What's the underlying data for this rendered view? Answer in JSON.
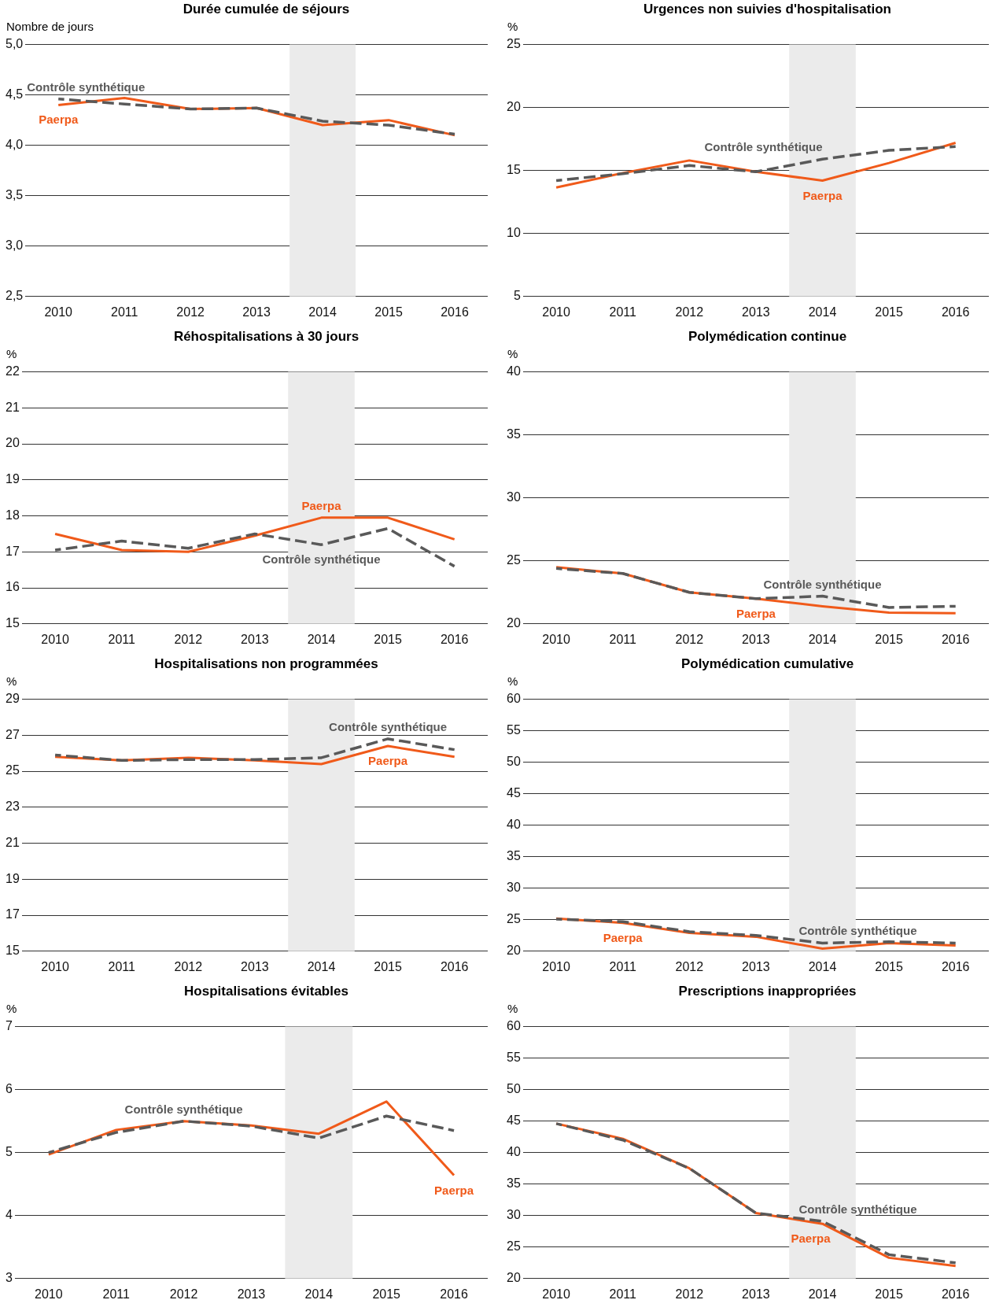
{
  "chart_data": [
    {
      "type": "line",
      "title": "Durée cumulée de séjours",
      "ylabel": "Nombre de jours",
      "x": [
        2010,
        2011,
        2012,
        2013,
        2014,
        2015,
        2016
      ],
      "xlim": [
        2009.5,
        2016.5
      ],
      "xticks": [
        2010,
        2011,
        2012,
        2013,
        2014,
        2015,
        2016
      ],
      "ylim": [
        2.5,
        5
      ],
      "yticks": [
        {
          "value": 2.5,
          "label": "2,5"
        },
        {
          "value": 3,
          "label": "3,0"
        },
        {
          "value": 3.5,
          "label": "3,5"
        },
        {
          "value": 4,
          "label": "4,0"
        },
        {
          "value": 4.5,
          "label": "4,5"
        },
        {
          "value": 5,
          "label": "5,0"
        }
      ],
      "grid": "y",
      "legend": false,
      "bands": [
        {
          "axis": "x",
          "from": 2013.5,
          "to": 2014.5,
          "color": "#ebebeb"
        }
      ],
      "series": [
        {
          "name": "Contrôle synthétique",
          "color": "#595959",
          "line_style": "dashed",
          "values": [
            4.46,
            4.41,
            4.36,
            4.37,
            4.24,
            4.2,
            4.11
          ]
        },
        {
          "name": "Paerpa",
          "color": "#f05a1a",
          "line_style": "solid",
          "values": [
            4.4,
            4.47,
            4.36,
            4.37,
            4.2,
            4.25,
            4.1
          ]
        }
      ]
    },
    {
      "type": "line",
      "title": "Urgences non suivies d'hospitalisation",
      "ylabel": "%",
      "x": [
        2010,
        2011,
        2012,
        2013,
        2014,
        2015,
        2016
      ],
      "xlim": [
        2009.5,
        2016.5
      ],
      "xticks": [
        2010,
        2011,
        2012,
        2013,
        2014,
        2015,
        2016
      ],
      "ylim": [
        5,
        25
      ],
      "yticks": [
        5,
        10,
        15,
        20,
        25
      ],
      "grid": "y",
      "legend": false,
      "bands": [
        {
          "axis": "x",
          "from": 2013.5,
          "to": 2014.5,
          "color": "#ebebeb"
        }
      ],
      "series": [
        {
          "name": "Contrôle synthétique",
          "color": "#595959",
          "line_style": "dashed",
          "values": [
            14.2,
            14.75,
            15.4,
            14.9,
            15.9,
            16.6,
            16.9
          ]
        },
        {
          "name": "Paerpa",
          "color": "#f05a1a",
          "line_style": "solid",
          "values": [
            13.65,
            14.8,
            15.8,
            14.9,
            14.2,
            15.6,
            17.2
          ]
        }
      ]
    },
    {
      "type": "line",
      "title": "Réhospitalisations à 30 jours",
      "ylabel": "%",
      "x": [
        2010,
        2011,
        2012,
        2013,
        2014,
        2015,
        2016
      ],
      "xlim": [
        2009.5,
        2016.5
      ],
      "xticks": [
        2010,
        2011,
        2012,
        2013,
        2014,
        2015,
        2016
      ],
      "ylim": [
        15,
        22
      ],
      "yticks": [
        15,
        16,
        17,
        18,
        19,
        20,
        21,
        22
      ],
      "grid": "y",
      "legend": false,
      "bands": [
        {
          "axis": "x",
          "from": 2013.5,
          "to": 2014.5,
          "color": "#ebebeb"
        }
      ],
      "series": [
        {
          "name": "Contrôle synthétique",
          "color": "#595959",
          "line_style": "dashed",
          "values": [
            17.05,
            17.3,
            17.1,
            17.5,
            17.2,
            17.65,
            16.6
          ]
        },
        {
          "name": "Paerpa",
          "color": "#f05a1a",
          "line_style": "solid",
          "values": [
            17.5,
            17.05,
            17.0,
            17.45,
            17.95,
            17.95,
            17.35
          ]
        }
      ]
    },
    {
      "type": "line",
      "title": "Polymédication continue",
      "ylabel": "%",
      "x": [
        2010,
        2011,
        2012,
        2013,
        2014,
        2015,
        2016
      ],
      "xlim": [
        2009.5,
        2016.5
      ],
      "xticks": [
        2010,
        2011,
        2012,
        2013,
        2014,
        2015,
        2016
      ],
      "ylim": [
        20,
        40
      ],
      "yticks": [
        20,
        25,
        30,
        35,
        40
      ],
      "grid": "y",
      "legend": false,
      "bands": [
        {
          "axis": "x",
          "from": 2013.5,
          "to": 2014.5,
          "color": "#ebebeb"
        }
      ],
      "series": [
        {
          "name": "Contrôle synthétique",
          "color": "#595959",
          "line_style": "dashed",
          "values": [
            24.4,
            24.0,
            22.5,
            22.0,
            22.2,
            21.3,
            21.4
          ]
        },
        {
          "name": "Paerpa",
          "color": "#f05a1a",
          "line_style": "solid",
          "values": [
            24.5,
            24.0,
            22.5,
            22.0,
            21.4,
            20.9,
            20.85
          ]
        }
      ]
    },
    {
      "type": "line",
      "title": "Hospitalisations non programmées",
      "ylabel": "%",
      "x": [
        2010,
        2011,
        2012,
        2013,
        2014,
        2015,
        2016
      ],
      "xlim": [
        2009.5,
        2016.5
      ],
      "xticks": [
        2010,
        2011,
        2012,
        2013,
        2014,
        2015,
        2016
      ],
      "ylim": [
        15,
        29
      ],
      "yticks": [
        15,
        17,
        19,
        21,
        23,
        25,
        27,
        29
      ],
      "grid": "y",
      "legend": false,
      "bands": [
        {
          "axis": "x",
          "from": 2013.5,
          "to": 2014.5,
          "color": "#ebebeb"
        }
      ],
      "series": [
        {
          "name": "Contrôle synthétique",
          "color": "#595959",
          "line_style": "dashed",
          "values": [
            25.9,
            25.6,
            25.65,
            25.65,
            25.75,
            26.8,
            26.2
          ]
        },
        {
          "name": "Paerpa",
          "color": "#f05a1a",
          "line_style": "solid",
          "values": [
            25.8,
            25.6,
            25.75,
            25.6,
            25.4,
            26.4,
            25.8
          ]
        }
      ]
    },
    {
      "type": "line",
      "title": "Polymédication cumulative",
      "ylabel": "%",
      "x": [
        2010,
        2011,
        2012,
        2013,
        2014,
        2015,
        2016
      ],
      "xlim": [
        2009.5,
        2016.5
      ],
      "xticks": [
        2010,
        2011,
        2012,
        2013,
        2014,
        2015,
        2016
      ],
      "ylim": [
        20,
        60
      ],
      "yticks": [
        20,
        25,
        30,
        35,
        40,
        45,
        50,
        55,
        60
      ],
      "grid": "y",
      "legend": false,
      "bands": [
        {
          "axis": "x",
          "from": 2013.5,
          "to": 2014.5,
          "color": "#ebebeb"
        }
      ],
      "series": [
        {
          "name": "Contrôle synthétique",
          "color": "#595959",
          "line_style": "dashed",
          "values": [
            25.1,
            24.7,
            23.1,
            22.5,
            21.3,
            21.5,
            21.3
          ]
        },
        {
          "name": "Paerpa",
          "color": "#f05a1a",
          "line_style": "solid",
          "values": [
            25.2,
            24.5,
            22.9,
            22.3,
            20.4,
            21.3,
            20.9
          ]
        }
      ]
    },
    {
      "type": "line",
      "title": "Hospitalisations évitables",
      "ylabel": "%",
      "x": [
        2010,
        2011,
        2012,
        2013,
        2014,
        2015,
        2016
      ],
      "xlim": [
        2009.5,
        2016.5
      ],
      "xticks": [
        2010,
        2011,
        2012,
        2013,
        2014,
        2015,
        2016
      ],
      "ylim": [
        3,
        7
      ],
      "yticks": [
        3,
        4,
        5,
        6,
        7
      ],
      "grid": "y",
      "legend": false,
      "bands": [
        {
          "axis": "x",
          "from": 2013.5,
          "to": 2014.5,
          "color": "#ebebeb"
        }
      ],
      "series": [
        {
          "name": "Contrôle synthétique",
          "color": "#595959",
          "line_style": "dashed",
          "values": [
            5.0,
            5.32,
            5.5,
            5.42,
            5.23,
            5.58,
            5.35
          ]
        },
        {
          "name": "Paerpa",
          "color": "#f05a1a",
          "line_style": "solid",
          "values": [
            4.97,
            5.36,
            5.5,
            5.43,
            5.3,
            5.81,
            4.64
          ]
        }
      ]
    },
    {
      "type": "line",
      "title": "Prescriptions inappropriées",
      "ylabel": "%",
      "x": [
        2010,
        2011,
        2012,
        2013,
        2014,
        2015,
        2016
      ],
      "xlim": [
        2009.5,
        2016.5
      ],
      "xticks": [
        2010,
        2011,
        2012,
        2013,
        2014,
        2015,
        2016
      ],
      "ylim": [
        20,
        60
      ],
      "yticks": [
        20,
        25,
        30,
        35,
        40,
        45,
        50,
        55,
        60
      ],
      "grid": "y",
      "legend": false,
      "bands": [
        {
          "axis": "x",
          "from": 2013.5,
          "to": 2014.5,
          "color": "#ebebeb"
        }
      ],
      "series": [
        {
          "name": "Contrôle synthétique",
          "color": "#595959",
          "line_style": "dashed",
          "values": [
            44.6,
            42.0,
            37.5,
            30.4,
            29.1,
            23.8,
            22.5
          ]
        },
        {
          "name": "Paerpa",
          "color": "#f05a1a",
          "line_style": "solid",
          "values": [
            44.6,
            42.2,
            37.5,
            30.4,
            28.7,
            23.3,
            22.0
          ]
        }
      ]
    }
  ]
}
